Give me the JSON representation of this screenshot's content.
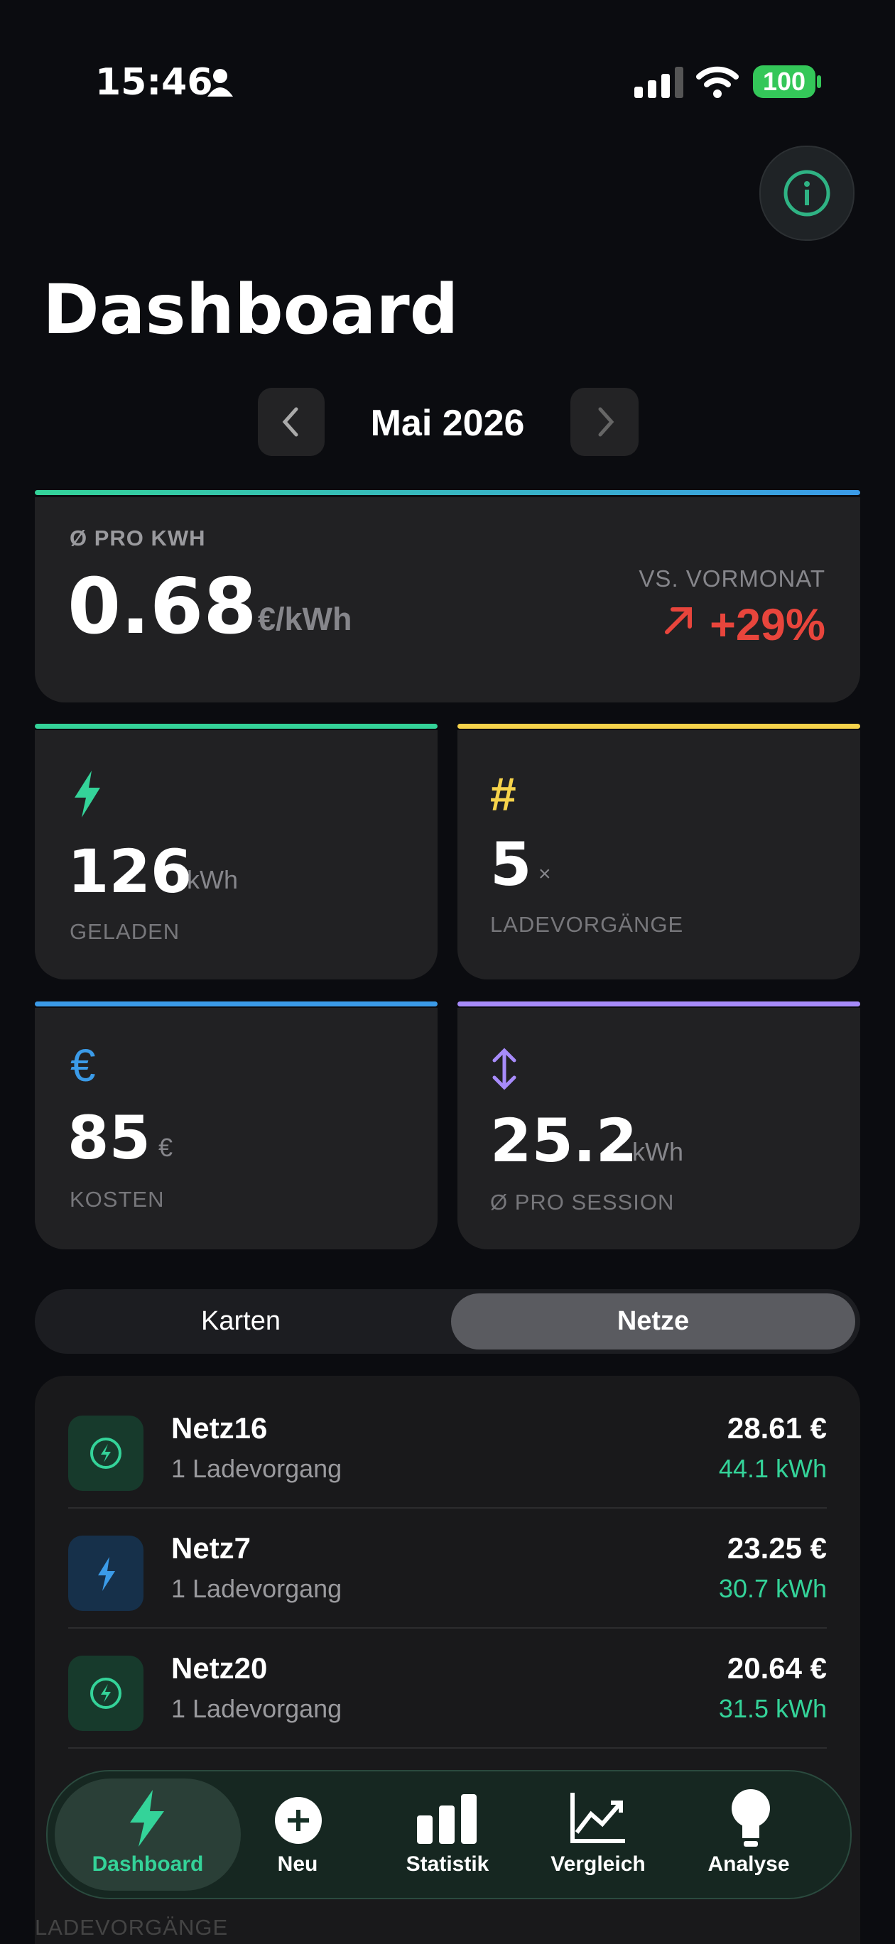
{
  "status_bar": {
    "time": "15:46",
    "battery": "100"
  },
  "header": {
    "title": "Dashboard"
  },
  "month_nav": {
    "label": "Mai 2026"
  },
  "average_card": {
    "label": "Ø PRO KWH",
    "value": "0.68",
    "unit": "€/kWh",
    "compare_label": "VS. VORMONAT",
    "change": "+29%"
  },
  "stats": [
    {
      "value": "126",
      "unit": "kWh",
      "label": "GELADEN"
    },
    {
      "value": "5",
      "unit": "×",
      "label": "LADEVORGÄNGE"
    },
    {
      "value": "85",
      "unit": "€",
      "label": "KOSTEN"
    },
    {
      "value": "25.2",
      "unit": "kWh",
      "label": "Ø PRO SESSION"
    }
  ],
  "segmented": {
    "options": [
      "Karten",
      "Netze"
    ]
  },
  "network_list": [
    {
      "name": "Netz16",
      "sessions": "1 Ladevorgang",
      "cost": "28.61 €",
      "energy": "44.1 kWh"
    },
    {
      "name": "Netz7",
      "sessions": "1 Ladevorgang",
      "cost": "23.25 €",
      "energy": "30.7 kWh"
    },
    {
      "name": "Netz20",
      "sessions": "1 Ladevorgang",
      "cost": "20.64 €",
      "energy": "31.5 kWh"
    }
  ],
  "tab_bar": {
    "items": [
      "Dashboard",
      "Neu",
      "Statistik",
      "Vergleich",
      "Analyse"
    ]
  },
  "next_section": {
    "title": "LADEVORGÄNGE"
  }
}
